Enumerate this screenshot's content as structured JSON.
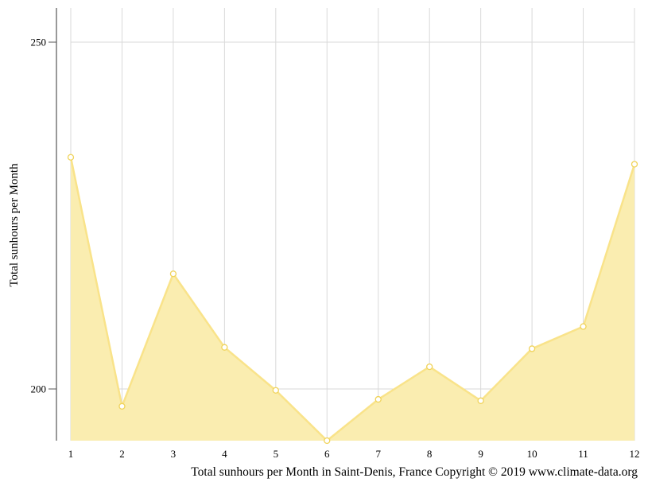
{
  "chart_data": {
    "type": "area",
    "x": [
      1,
      2,
      3,
      4,
      5,
      6,
      7,
      8,
      9,
      10,
      11,
      12
    ],
    "series": [
      {
        "values": [
          233.4,
          197.5,
          216.6,
          206.0,
          199.8,
          192.3,
          198.5,
          203.2,
          198.3,
          205.8,
          209.0,
          232.4
        ]
      }
    ],
    "xticks": [
      "1",
      "2",
      "3",
      "4",
      "5",
      "6",
      "7",
      "8",
      "9",
      "10",
      "11",
      "12"
    ],
    "yticks": [
      200,
      250
    ],
    "ytick_labels": [
      "200",
      "250"
    ],
    "ylim": [
      192.5,
      255
    ],
    "ylabel": "Total sunhours per Month",
    "xlabel": "Total sunhours per Month in Saint-Denis, France Copyright © 2019 www.climate-data.org",
    "grid": true,
    "colors": {
      "fill": "#faedb0",
      "line": "#f9e38a",
      "marker_stroke": "#f0d35a",
      "grid": "#d9d9d9",
      "axis": "#555555"
    }
  }
}
